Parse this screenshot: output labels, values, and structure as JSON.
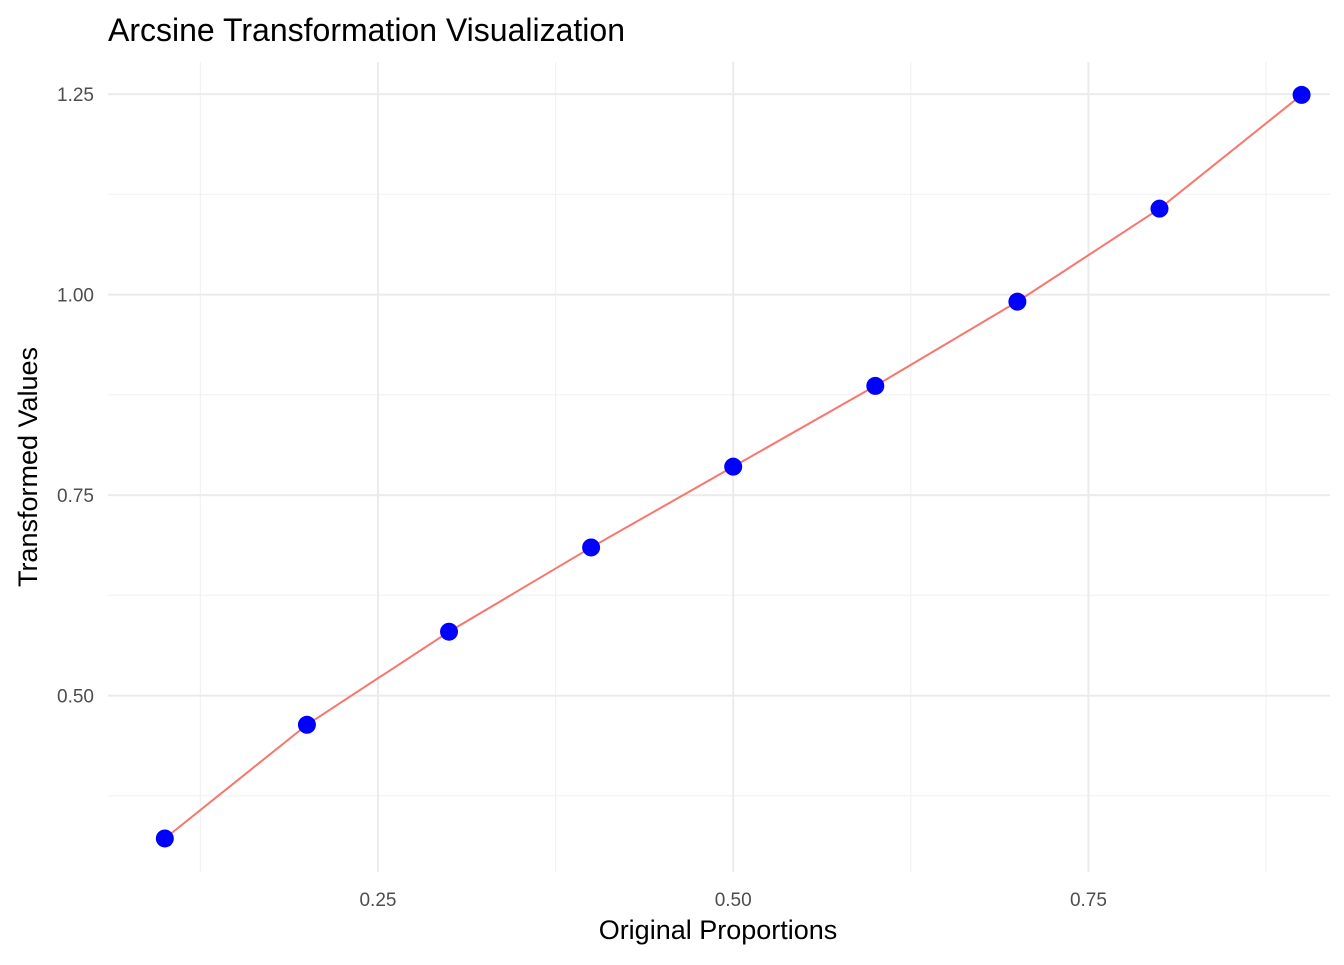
{
  "chart_data": {
    "type": "line",
    "title": "Arcsine Transformation Visualization",
    "xlabel": "Original Proportions",
    "ylabel": "Transformed Values",
    "x": [
      0.1,
      0.2,
      0.3,
      0.4,
      0.5,
      0.6,
      0.7,
      0.8,
      0.9
    ],
    "series": [
      {
        "values": [
          0.3218,
          0.4636,
          0.5796,
          0.6847,
          0.7854,
          0.8861,
          0.9912,
          1.1071,
          1.249
        ],
        "line_color": "#F8766D",
        "point_color": "#0000FF",
        "show_points": true
      }
    ],
    "xlim": [
      0.06,
      0.92
    ],
    "ylim": [
      0.28,
      1.29
    ],
    "x_ticks": [
      0.25,
      0.5,
      0.75
    ],
    "x_tick_labels": [
      "0.25",
      "0.50",
      "0.75"
    ],
    "x_minor_ticks": [
      0.125,
      0.375,
      0.625,
      0.875
    ],
    "y_ticks": [
      0.5,
      0.75,
      1.0,
      1.25
    ],
    "y_tick_labels": [
      "0.50",
      "0.75",
      "1.00",
      "1.25"
    ],
    "y_minor_ticks": [
      0.375,
      0.625,
      0.875,
      1.125
    ],
    "grid": true,
    "legend": "none"
  }
}
